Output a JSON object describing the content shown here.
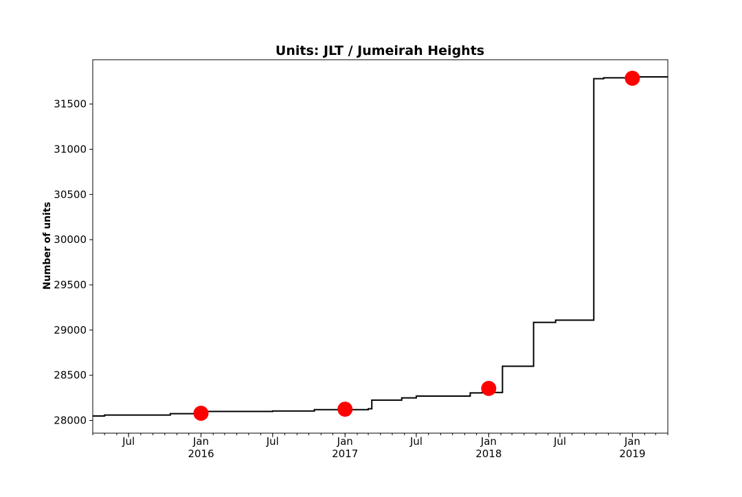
{
  "chart_data": {
    "type": "line",
    "title": "Units: JLT / Jumeirah Heights",
    "xlabel": "",
    "ylabel": "Number of units",
    "xlim": [
      "2015-04-01",
      "2019-04-01"
    ],
    "ylim": [
      27860,
      31990
    ],
    "y_ticks": [
      28000,
      28500,
      29000,
      29500,
      30000,
      30500,
      31000,
      31500
    ],
    "x_ticks": [
      {
        "date": "2015-07-01",
        "label": "Jul",
        "sublabel": ""
      },
      {
        "date": "2016-01-01",
        "label": "Jan",
        "sublabel": "2016"
      },
      {
        "date": "2016-07-01",
        "label": "Jul",
        "sublabel": ""
      },
      {
        "date": "2017-01-01",
        "label": "Jan",
        "sublabel": "2017"
      },
      {
        "date": "2017-07-01",
        "label": "Jul",
        "sublabel": ""
      },
      {
        "date": "2018-01-01",
        "label": "Jan",
        "sublabel": "2018"
      },
      {
        "date": "2018-07-01",
        "label": "Jul",
        "sublabel": ""
      },
      {
        "date": "2019-01-01",
        "label": "Jan",
        "sublabel": "2019"
      }
    ],
    "series": [
      {
        "step_points": [
          [
            "2015-04-01",
            28050
          ],
          [
            "2015-05-01",
            28060
          ],
          [
            "2015-10-15",
            28075
          ],
          [
            "2016-01-01",
            28100
          ],
          [
            "2016-07-01",
            28105
          ],
          [
            "2016-10-15",
            28120
          ],
          [
            "2017-03-01",
            28130
          ],
          [
            "2017-03-10",
            28225
          ],
          [
            "2017-05-25",
            28250
          ],
          [
            "2017-07-01",
            28270
          ],
          [
            "2017-11-15",
            28305
          ],
          [
            "2017-12-15",
            28310
          ],
          [
            "2018-02-05",
            28600
          ],
          [
            "2018-04-25",
            29085
          ],
          [
            "2018-06-20",
            29110
          ],
          [
            "2018-09-25",
            31780
          ],
          [
            "2018-10-20",
            31790
          ],
          [
            "2019-01-10",
            31800
          ],
          [
            "2019-04-01",
            31800
          ]
        ]
      }
    ],
    "markers": [
      {
        "date": "2016-01-01",
        "value": 28080
      },
      {
        "date": "2017-01-01",
        "value": 28125
      },
      {
        "date": "2018-01-01",
        "value": 28355
      },
      {
        "date": "2019-01-01",
        "value": 31785
      }
    ],
    "colors": {
      "line": "#000000",
      "marker": "#ff0000"
    },
    "grid": false,
    "legend": "none"
  }
}
